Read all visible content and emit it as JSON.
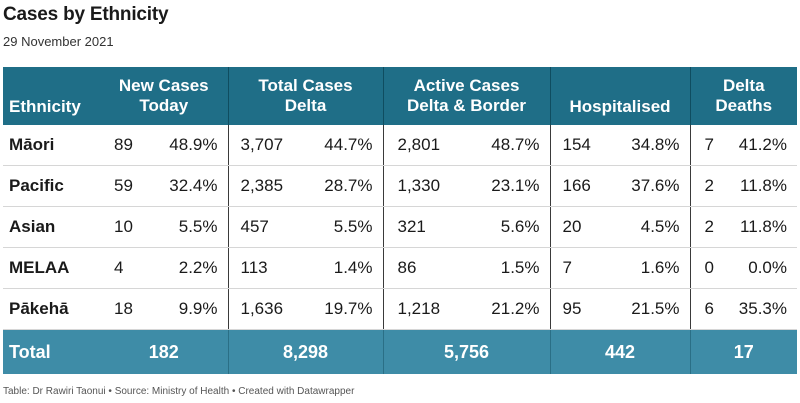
{
  "title": "Cases by Ethnicity",
  "subtitle": "29 November 2021",
  "headers": {
    "ethnicity": "Ethnicity",
    "new_cases": "New Cases Today",
    "total_cases": "Total Cases Delta",
    "active_cases": "Active Cases Delta & Border",
    "hospitalised": "Hospitalised",
    "deaths": "Delta Deaths"
  },
  "rows": [
    {
      "ethnicity": "Māori",
      "new_n": "89",
      "new_p": "48.9%",
      "total_n": "3,707",
      "total_p": "44.7%",
      "active_n": "2,801",
      "active_p": "48.7%",
      "hosp_n": "154",
      "hosp_p": "34.8%",
      "death_n": "7",
      "death_p": "41.2%"
    },
    {
      "ethnicity": "Pacific",
      "new_n": "59",
      "new_p": "32.4%",
      "total_n": "2,385",
      "total_p": "28.7%",
      "active_n": "1,330",
      "active_p": "23.1%",
      "hosp_n": "166",
      "hosp_p": "37.6%",
      "death_n": "2",
      "death_p": "11.8%"
    },
    {
      "ethnicity": "Asian",
      "new_n": "10",
      "new_p": "5.5%",
      "total_n": "457",
      "total_p": "5.5%",
      "active_n": "321",
      "active_p": "5.6%",
      "hosp_n": "20",
      "hosp_p": "4.5%",
      "death_n": "2",
      "death_p": "11.8%"
    },
    {
      "ethnicity": "MELAA",
      "new_n": "4",
      "new_p": "2.2%",
      "total_n": "113",
      "total_p": "1.4%",
      "active_n": "86",
      "active_p": "1.5%",
      "hosp_n": "7",
      "hosp_p": "1.6%",
      "death_n": "0",
      "death_p": "0.0%"
    },
    {
      "ethnicity": "Pākehā",
      "new_n": "18",
      "new_p": "9.9%",
      "total_n": "1,636",
      "total_p": "19.7%",
      "active_n": "1,218",
      "active_p": "21.2%",
      "hosp_n": "95",
      "hosp_p": "21.5%",
      "death_n": "6",
      "death_p": "35.3%"
    }
  ],
  "total": {
    "label": "Total",
    "new": "182",
    "total": "8,298",
    "active": "5,756",
    "hosp": "442",
    "deaths": "17"
  },
  "footer": "Table: Dr Rawiri Taonui • Source: Ministry of Health • Created with Datawrapper",
  "colors": {
    "header_bg": "#1f6e87",
    "total_bg": "#3e8ca7"
  }
}
